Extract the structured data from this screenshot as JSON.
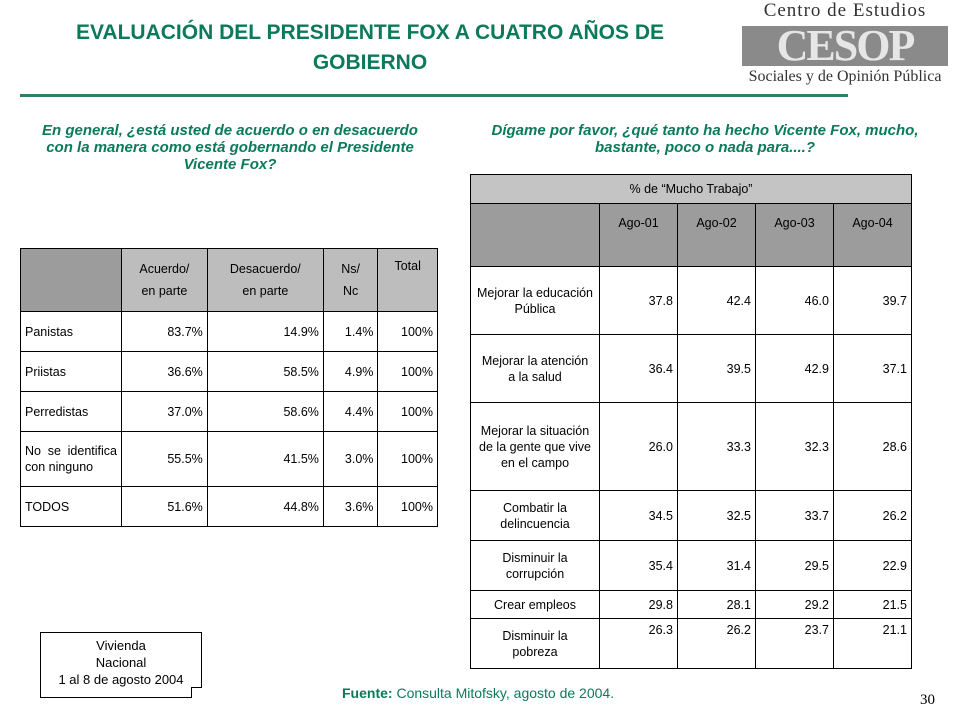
{
  "title_line1": "EVALUACIÓN DEL PRESIDENTE FOX A CUATRO AÑOS DE",
  "title_line2": "GOBIERNO",
  "logo": {
    "top": "Centro de Estudios",
    "mark": "CESOP",
    "bottom": "Sociales y de Opinión Pública"
  },
  "question_left": "En general, ¿está usted de acuerdo o en desacuerdo con la manera como está gobernando el Presidente Vicente Fox?",
  "question_right": "Dígame por favor, ¿qué tanto ha hecho Vicente Fox, mucho, bastante, poco o nada para....?",
  "table_left": {
    "headers": [
      [
        "Acuerdo/",
        "en parte"
      ],
      [
        "Desacuerdo/",
        "en parte"
      ],
      [
        "Ns/",
        "Nc"
      ],
      [
        "Total"
      ]
    ],
    "rows": [
      {
        "label": "Panistas",
        "values": [
          "83.7%",
          "14.9%",
          "1.4%",
          "100%"
        ]
      },
      {
        "label": "Priistas",
        "values": [
          "36.6%",
          "58.5%",
          "4.9%",
          "100%"
        ]
      },
      {
        "label": "Perredistas",
        "values": [
          "37.0%",
          "58.6%",
          "4.4%",
          "100%"
        ]
      },
      {
        "label": "No se identifica con ninguno",
        "values": [
          "55.5%",
          "41.5%",
          "3.0%",
          "100%"
        ]
      },
      {
        "label": "TODOS",
        "values": [
          "51.6%",
          "44.8%",
          "3.6%",
          "100%"
        ]
      }
    ]
  },
  "table_right": {
    "header": "% de “Mucho Trabajo”",
    "years": [
      "Ago-01",
      "Ago-02",
      "Ago-03",
      "Ago-04"
    ],
    "rows": [
      {
        "label": [
          "Mejorar la educación",
          "Pública"
        ],
        "values": [
          "37.8",
          "42.4",
          "46.0",
          "39.7"
        ]
      },
      {
        "label": [
          "Mejorar la atención",
          "a la salud"
        ],
        "values": [
          "36.4",
          "39.5",
          "42.9",
          "37.1"
        ]
      },
      {
        "label": [
          "Mejorar la situación de la gente que vive",
          "en el campo"
        ],
        "values": [
          "26.0",
          "33.3",
          "32.3",
          "28.6"
        ]
      },
      {
        "label": [
          "Combatir la",
          "delincuencia"
        ],
        "values": [
          "34.5",
          "32.5",
          "33.7",
          "26.2"
        ]
      },
      {
        "label": [
          "Disminuir la",
          "corrupción"
        ],
        "values": [
          "35.4",
          "31.4",
          "29.5",
          "22.9"
        ]
      },
      {
        "label": [
          "Crear empleos"
        ],
        "values": [
          "29.8",
          "28.1",
          "29.2",
          "21.5"
        ]
      },
      {
        "label": [
          "Disminuir la",
          "pobreza"
        ],
        "values": [
          "26.3",
          "26.2",
          "23.7",
          "21.1"
        ]
      }
    ]
  },
  "note": [
    "Vivienda",
    "Nacional",
    "1 al 8 de agosto 2004"
  ],
  "source_label": "Fuente:",
  "source_text": " Consulta Mitofsky,  agosto de 2004.",
  "page_number": "30"
}
